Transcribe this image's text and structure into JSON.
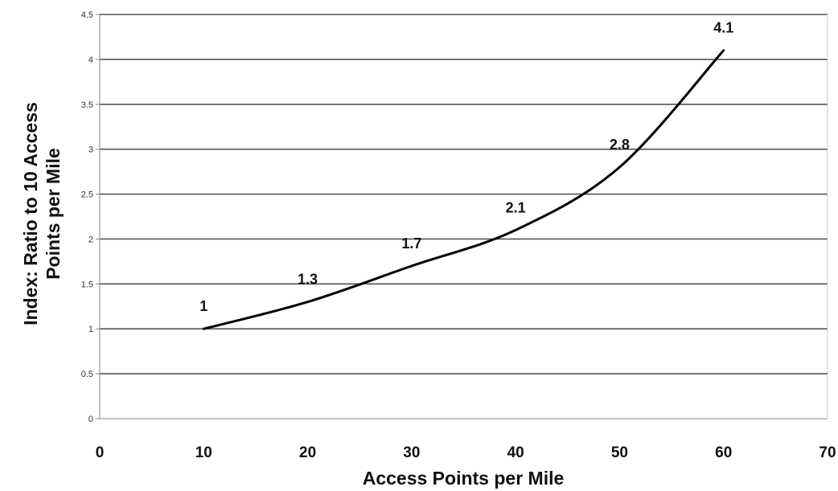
{
  "chart_data": {
    "type": "line",
    "title": "",
    "xlabel": "Access Points per Mile",
    "ylabel": [
      "Index:  Ratio to 10 Access",
      "Points per Mile"
    ],
    "xlim": [
      0,
      70
    ],
    "ylim": [
      0,
      4.5
    ],
    "x_ticks": [
      "0",
      "10",
      "20",
      "30",
      "40",
      "50",
      "60",
      "70"
    ],
    "y_ticks": [
      "0",
      "0.5",
      "1",
      "1.5",
      "2",
      "2.5",
      "3",
      "3.5",
      "4",
      "4.5"
    ],
    "grid": "horizontal",
    "legend": "none",
    "series": [
      {
        "x": [
          10,
          20,
          30,
          40,
          50,
          60
        ],
        "values": [
          1,
          1.3,
          1.7,
          2.1,
          2.8,
          4.1
        ],
        "labels": [
          "1",
          "1.3",
          "1.7",
          "2.1",
          "2.8",
          "4.1"
        ],
        "color": "#000000"
      }
    ],
    "colors": {
      "grid": "#555555",
      "axis": "#888888",
      "line": "#000000"
    }
  }
}
